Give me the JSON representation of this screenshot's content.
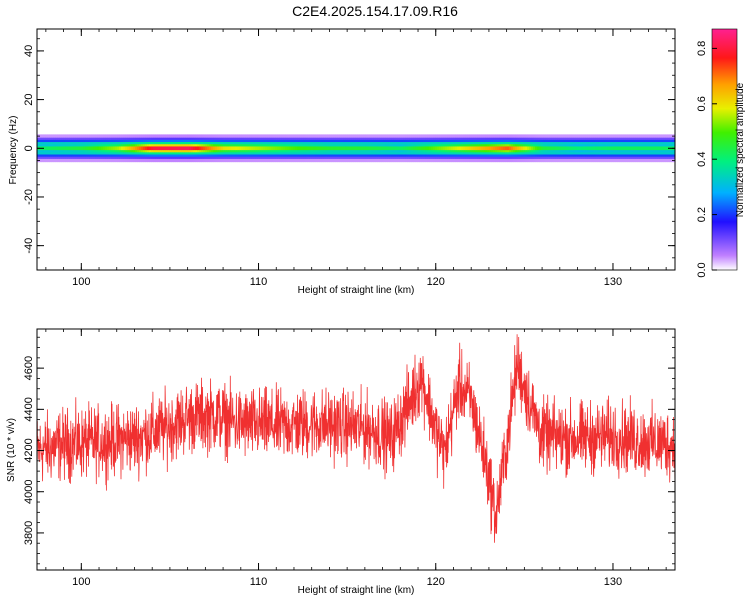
{
  "title": "C2E4.2025.154.17.09.R16",
  "colors": {
    "series": "#f03030",
    "frame": "#000000"
  },
  "chart_data": [
    {
      "type": "heatmap",
      "xlabel": "Height of straight line (km)",
      "ylabel": "Frequency (Hz)",
      "xlim": [
        97.5,
        133.5
      ],
      "ylim": [
        -50,
        49
      ],
      "xticks": [
        100,
        110,
        120,
        130
      ],
      "yticks": [
        -40,
        -20,
        0,
        20,
        40
      ],
      "xtick_labels": [
        "100",
        "110",
        "120",
        "130"
      ],
      "ytick_labels": [
        "-40",
        "-20",
        "0",
        "20",
        "40"
      ],
      "band_center_hz": 0,
      "band_halfwidth_hz": 3,
      "colorbar": {
        "label": "Normalized spectral amplitude",
        "range": [
          0,
          0.87
        ],
        "ticks": [
          0,
          0.2,
          0.4,
          0.6,
          0.8
        ],
        "tick_labels": [
          "0.0",
          "0.2",
          "0.4",
          "0.6",
          "0.8"
        ],
        "colormap": "rainbow (white-purple-blue-cyan-green-yellow-orange-red-pink)"
      },
      "center_amplitude_profile": [
        {
          "x": 98,
          "v": 0.42
        },
        {
          "x": 100,
          "v": 0.45
        },
        {
          "x": 102,
          "v": 0.55
        },
        {
          "x": 104,
          "v": 0.8
        },
        {
          "x": 106,
          "v": 0.82
        },
        {
          "x": 108,
          "v": 0.6
        },
        {
          "x": 110,
          "v": 0.55
        },
        {
          "x": 112,
          "v": 0.5
        },
        {
          "x": 114,
          "v": 0.46
        },
        {
          "x": 116,
          "v": 0.45
        },
        {
          "x": 118,
          "v": 0.42
        },
        {
          "x": 120,
          "v": 0.52
        },
        {
          "x": 122,
          "v": 0.62
        },
        {
          "x": 124,
          "v": 0.72
        },
        {
          "x": 126,
          "v": 0.45
        },
        {
          "x": 128,
          "v": 0.4
        },
        {
          "x": 130,
          "v": 0.42
        },
        {
          "x": 133.5,
          "v": 0.42
        }
      ]
    },
    {
      "type": "line",
      "xlabel": "Height of straight line (km)",
      "ylabel": "SNR (10 * v/v)",
      "xlim": [
        97.5,
        133.5
      ],
      "ylim": [
        3620,
        4790
      ],
      "xticks": [
        100,
        110,
        120,
        130
      ],
      "yticks": [
        3800,
        4000,
        4200,
        4400,
        4600
      ],
      "xtick_labels": [
        "100",
        "110",
        "120",
        "130"
      ],
      "ytick_labels": [
        "3800",
        "4000",
        "4200",
        "4400",
        "4600"
      ],
      "series": [
        {
          "mean_profile": [
            {
              "x": 97.5,
              "y": 4200
            },
            {
              "x": 99,
              "y": 4230
            },
            {
              "x": 101,
              "y": 4240
            },
            {
              "x": 103,
              "y": 4260
            },
            {
              "x": 104.5,
              "y": 4300
            },
            {
              "x": 106,
              "y": 4360
            },
            {
              "x": 107.5,
              "y": 4370
            },
            {
              "x": 109,
              "y": 4330
            },
            {
              "x": 111,
              "y": 4320
            },
            {
              "x": 113,
              "y": 4330
            },
            {
              "x": 115,
              "y": 4320
            },
            {
              "x": 116.5,
              "y": 4300
            },
            {
              "x": 117.5,
              "y": 4260
            },
            {
              "x": 118.5,
              "y": 4430
            },
            {
              "x": 119.2,
              "y": 4560
            },
            {
              "x": 120,
              "y": 4300
            },
            {
              "x": 120.5,
              "y": 4180
            },
            {
              "x": 121.3,
              "y": 4520
            },
            {
              "x": 122,
              "y": 4440
            },
            {
              "x": 122.8,
              "y": 4150
            },
            {
              "x": 123.4,
              "y": 3880
            },
            {
              "x": 124,
              "y": 4230
            },
            {
              "x": 124.6,
              "y": 4620
            },
            {
              "x": 125.3,
              "y": 4430
            },
            {
              "x": 126,
              "y": 4270
            },
            {
              "x": 128,
              "y": 4260
            },
            {
              "x": 130,
              "y": 4270
            },
            {
              "x": 132,
              "y": 4240
            },
            {
              "x": 133.5,
              "y": 4230
            }
          ],
          "noise_amplitude": 120
        }
      ]
    }
  ]
}
